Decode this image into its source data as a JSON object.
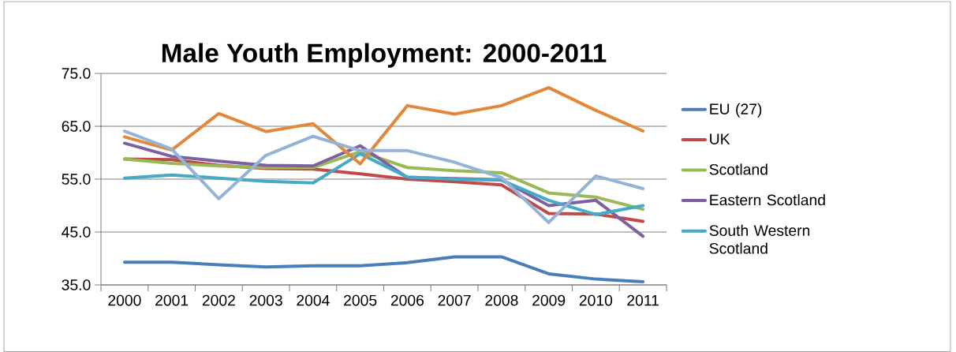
{
  "chart_data": {
    "type": "line",
    "title": "Male Youth Employment: 2000-2011",
    "categories": [
      "2000",
      "2001",
      "2002",
      "2003",
      "2004",
      "2005",
      "2006",
      "2007",
      "2008",
      "2009",
      "2010",
      "2011"
    ],
    "series": [
      {
        "name": "EU (27)",
        "color": "#4a7ebb",
        "values": [
          39.3,
          39.3,
          38.8,
          38.4,
          38.6,
          38.6,
          39.2,
          40.3,
          40.3,
          37.1,
          36.1,
          35.6
        ]
      },
      {
        "name": "UK",
        "color": "#be4b48",
        "values": [
          58.8,
          58.7,
          57.6,
          57.0,
          56.9,
          56.0,
          55.0,
          54.5,
          53.9,
          48.5,
          48.4,
          47.0
        ]
      },
      {
        "name": "Scotland",
        "color": "#98b954",
        "values": [
          58.8,
          58.0,
          57.5,
          57.2,
          57.2,
          60.2,
          57.2,
          56.6,
          56.2,
          52.4,
          51.6,
          49.3
        ]
      },
      {
        "name": "Eastern Scotland",
        "color": "#7d60a0",
        "values": [
          61.8,
          59.3,
          58.4,
          57.6,
          57.5,
          61.3,
          55.3,
          55.1,
          54.9,
          50.0,
          51.0,
          44.2
        ]
      },
      {
        "name": "South Western Scotland",
        "color": "#46aac5",
        "values": [
          55.2,
          55.8,
          55.2,
          54.6,
          54.3,
          59.8,
          55.4,
          55.0,
          54.8,
          51.0,
          48.3,
          50.0
        ]
      },
      {
        "color": "#e3883a",
        "values": [
          63.0,
          60.5,
          67.4,
          64.0,
          65.5,
          57.9,
          68.9,
          67.3,
          68.9,
          72.3,
          68.0,
          64.1
        ]
      },
      {
        "color": "#95b3d7",
        "values": [
          64.1,
          60.7,
          51.3,
          59.5,
          63.1,
          60.4,
          60.4,
          58.2,
          55.3,
          46.8,
          55.6,
          53.2
        ]
      }
    ],
    "ylim": [
      35,
      75
    ],
    "yticks": [
      {
        "value": 35,
        "label": "35.0"
      },
      {
        "value": 45,
        "label": "45.0"
      },
      {
        "value": 55,
        "label": "55.0"
      },
      {
        "value": 65,
        "label": "65.0"
      },
      {
        "value": 75,
        "label": "75.0"
      }
    ],
    "grid": "y",
    "legend": "right",
    "marker": "none",
    "line_style": "solid"
  }
}
